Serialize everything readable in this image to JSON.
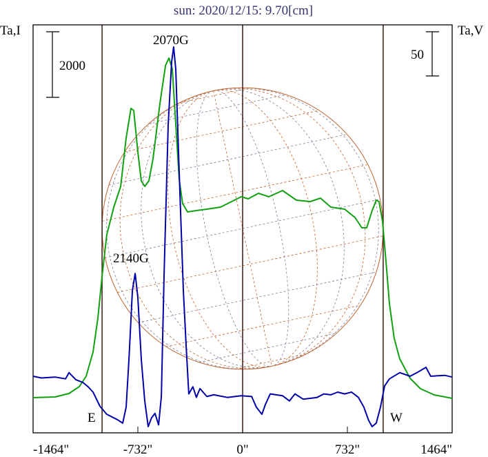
{
  "chart_data": {
    "type": "line",
    "title": "sun: 2020/12/15: 9.70[cm]",
    "ylabel_left": "Ta,I",
    "ylabel_right": "Ta,V",
    "xlabel": "",
    "xlim": [
      -1464,
      1464
    ],
    "x_ticks": [
      "-1464\"",
      "-732\"",
      "0\"",
      "732\"",
      "1464\""
    ],
    "x_tick_values": [
      -1464,
      -732,
      0,
      732,
      1464
    ],
    "limb_lines": [
      -982,
      0,
      982
    ],
    "limb_labels": {
      "east": "E",
      "west": "W"
    },
    "ylim_I": [
      -1074,
      11367
    ],
    "ylim_V": [
      -41,
      420
    ],
    "scale_bar_I": {
      "value": 2000,
      "label": "2000"
    },
    "scale_bar_V": {
      "value": 50,
      "label": "50"
    },
    "annotations": [
      {
        "text": "2070G",
        "x": -482,
        "series": "V"
      },
      {
        "text": "2140G",
        "x": -751,
        "series": "V"
      }
    ],
    "grid": false,
    "colors": {
      "I": "#10a010",
      "V": "#0000a8",
      "frame": "#000000",
      "limb": "#3a1a10",
      "sun": "#c0602a",
      "title": "#33336e"
    },
    "series": [
      {
        "name": "I",
        "axis": "left",
        "x": [
          -1464,
          -1310,
          -1213,
          -1141,
          -1093,
          -1045,
          -1011,
          -982,
          -949,
          -900,
          -852,
          -814,
          -780,
          -761,
          -732,
          -708,
          -684,
          -655,
          -626,
          -578,
          -539,
          -515,
          -491,
          -467,
          -443,
          -419,
          -385,
          -323,
          -250,
          -154,
          -58,
          -10,
          39,
          111,
          183,
          279,
          376,
          472,
          544,
          616,
          713,
          785,
          833,
          867,
          905,
          934,
          953,
          977,
          1002,
          1026,
          1059,
          1098,
          1170,
          1242,
          1338,
          1464
        ],
        "values": [
          0,
          21,
          126,
          337,
          652,
          1389,
          2442,
          3705,
          4968,
          5809,
          6441,
          7915,
          8820,
          8757,
          7494,
          6610,
          6441,
          6610,
          7283,
          8967,
          10125,
          10357,
          10020,
          8336,
          6652,
          5915,
          5662,
          5704,
          5746,
          5809,
          6020,
          6125,
          6062,
          6231,
          6125,
          6315,
          6020,
          5978,
          6083,
          5809,
          5746,
          5493,
          5178,
          5178,
          5704,
          6020,
          5978,
          5388,
          4125,
          2863,
          1810,
          1179,
          589,
          274,
          84,
          -21
        ]
      },
      {
        "name": "V",
        "axis": "right",
        "x": [
          -1464,
          -1406,
          -1310,
          -1237,
          -1213,
          -1165,
          -1117,
          -1079,
          -1045,
          -997,
          -949,
          -876,
          -838,
          -814,
          -794,
          -770,
          -751,
          -732,
          -708,
          -684,
          -660,
          -636,
          -612,
          -587,
          -568,
          -549,
          -520,
          -496,
          -482,
          -467,
          -443,
          -414,
          -395,
          -376,
          -347,
          -323,
          -298,
          -250,
          -202,
          -106,
          -10,
          63,
          96,
          135,
          159,
          193,
          279,
          327,
          366,
          424,
          520,
          568,
          616,
          664,
          713,
          761,
          809,
          847,
          881,
          905,
          934,
          963,
          992,
          1026,
          1098,
          1170,
          1218,
          1281,
          1314,
          1411,
          1464
        ],
        "values": [
          23,
          21,
          22,
          20,
          27,
          19,
          16,
          11,
          5,
          -11,
          -20,
          -26,
          -30,
          -12,
          42,
          120,
          139,
          112,
          42,
          -5,
          -34,
          -24,
          -19,
          -32,
          0,
          136,
          307,
          378,
          395,
          370,
          253,
          120,
          58,
          3,
          11,
          -1,
          9,
          0,
          2,
          -1,
          1,
          0,
          -12,
          -20,
          -9,
          3,
          1,
          -5,
          3,
          -3,
          -1,
          3,
          2,
          5,
          3,
          5,
          -1,
          -12,
          -27,
          -34,
          -30,
          -12,
          12,
          20,
          27,
          23,
          27,
          33,
          23,
          24,
          22
        ]
      }
    ]
  }
}
